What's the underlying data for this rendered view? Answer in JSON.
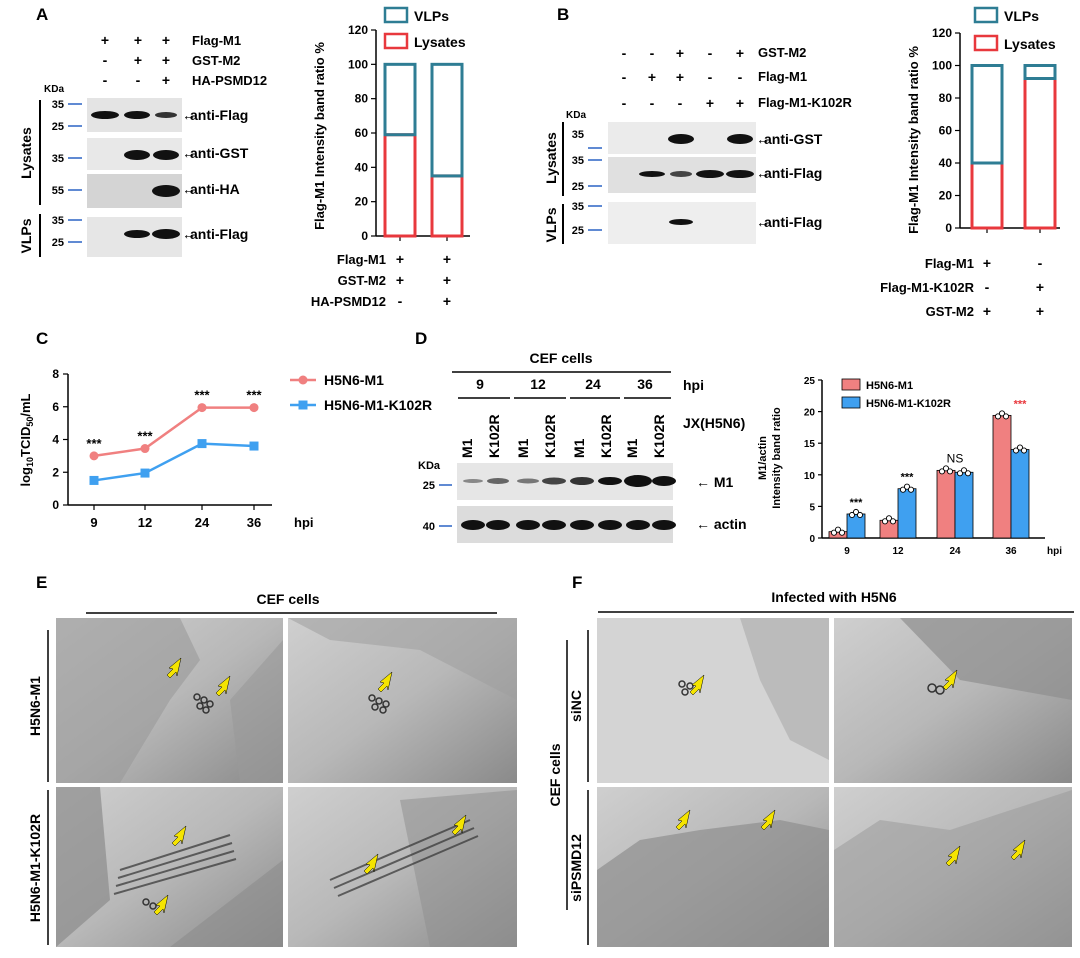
{
  "panel_labels": {
    "a": "A",
    "b": "B",
    "c": "C",
    "d": "D",
    "e": "E",
    "f": "F"
  },
  "signs": {
    "plus": "+",
    "minus": "-"
  },
  "units": {
    "kda": "KDa"
  },
  "colors": {
    "vlps": "#2e7d94",
    "lysates": "#e8383d",
    "h5n6_m1": "#f08080",
    "h5n6_m1_k102r": "#3fa0f0",
    "arrow": "#f5e400",
    "red_star": "#e8383d"
  },
  "panel_a": {
    "conditions": [
      "Flag-M1",
      "GST-M2",
      "HA-PSMD12"
    ],
    "signs_rows": [
      [
        "+",
        "+",
        "+"
      ],
      [
        "-",
        "+",
        "+"
      ],
      [
        "-",
        "-",
        "+"
      ]
    ],
    "groups": [
      "Lysates",
      "VLPs"
    ],
    "markers": [
      "35",
      "25",
      "35",
      "55",
      "35",
      "25"
    ],
    "blots": [
      "anti-Flag",
      "anti-GST",
      "anti-HA",
      "anti-Flag"
    ]
  },
  "panel_b": {
    "conditions": [
      "GST-M2",
      "Flag-M1",
      "Flag-M1-K102R"
    ],
    "signs_rows": [
      [
        "-",
        "-",
        "+",
        "-",
        "+"
      ],
      [
        "-",
        "+",
        "+",
        "-",
        "-"
      ],
      [
        "-",
        "-",
        "-",
        "+",
        "+"
      ]
    ],
    "groups": [
      "Lysates",
      "VLPs"
    ],
    "markers": [
      "35",
      "35",
      "25",
      "35",
      "25"
    ],
    "blots": [
      "anti-GST",
      "anti-Flag",
      "anti-Flag"
    ]
  },
  "panel_d_blot": {
    "header": "CEF cells",
    "times": [
      "9",
      "12",
      "24",
      "36"
    ],
    "time_unit": "hpi",
    "lanes": [
      "M1",
      "K102R",
      "M1",
      "K102R",
      "M1",
      "K102R",
      "M1",
      "K102R"
    ],
    "virus_label": "JX(H5N6)",
    "markers": [
      "25",
      "40"
    ],
    "blots": [
      "M1",
      "actin"
    ]
  },
  "panel_e": {
    "header": "CEF cells",
    "rows": [
      "H5N6-M1",
      "H5N6-M1-K102R"
    ]
  },
  "panel_f": {
    "header": "Infected with H5N6",
    "group": "CEF cells",
    "rows": [
      "siNC",
      "siPSMD12"
    ]
  },
  "chart_data": [
    {
      "id": "A",
      "type": "bar",
      "stacked": true,
      "ylabel": "Flag-M1 Intensity band ratio %",
      "ylim": [
        0,
        120
      ],
      "yticks": [
        "0",
        "20",
        "40",
        "60",
        "80",
        "100",
        "120"
      ],
      "legend": [
        "VLPs",
        "Lysates"
      ],
      "condition_labels": [
        "Flag-M1",
        "GST-M2",
        "HA-PSMD12"
      ],
      "condition_signs": [
        [
          "+",
          "+"
        ],
        [
          "+",
          "+"
        ],
        [
          "-",
          "+"
        ]
      ],
      "series": [
        {
          "name": "Lysates",
          "values": [
            59,
            35
          ]
        },
        {
          "name": "VLPs",
          "values": [
            41,
            65
          ]
        }
      ]
    },
    {
      "id": "B",
      "type": "bar",
      "stacked": true,
      "ylabel": "Flag-M1 Intensity band ratio %",
      "ylim": [
        0,
        120
      ],
      "yticks": [
        "0",
        "20",
        "40",
        "60",
        "80",
        "100",
        "120"
      ],
      "legend": [
        "VLPs",
        "Lysates"
      ],
      "condition_labels": [
        "Flag-M1",
        "Flag-M1-K102R",
        "GST-M2"
      ],
      "condition_signs": [
        [
          "+",
          "-"
        ],
        [
          "-",
          "+"
        ],
        [
          "+",
          "+"
        ]
      ],
      "series": [
        {
          "name": "Lysates",
          "values": [
            40,
            92
          ]
        },
        {
          "name": "VLPs",
          "values": [
            60,
            8
          ]
        }
      ]
    },
    {
      "id": "C",
      "type": "line",
      "ylabel": "log10TCID50/mL",
      "xlabel": "hpi",
      "ylim": [
        0,
        8
      ],
      "yticks": [
        "0",
        "2",
        "4",
        "6",
        "8"
      ],
      "categories": [
        "9",
        "12",
        "24",
        "36"
      ],
      "series": [
        {
          "name": "H5N6-M1",
          "values": [
            3.0,
            3.45,
            5.95,
            5.95
          ]
        },
        {
          "name": "H5N6-M1-K102R",
          "values": [
            1.5,
            1.95,
            3.75,
            3.6
          ]
        }
      ],
      "annotations": [
        "***",
        "***",
        "***",
        "***"
      ]
    },
    {
      "id": "D",
      "type": "bar",
      "ylabel": "M1/actin Intensity band ratio",
      "xlabel": "hpi",
      "ylim": [
        0,
        25
      ],
      "yticks": [
        "0",
        "5",
        "10",
        "15",
        "20",
        "25"
      ],
      "categories": [
        "9",
        "12",
        "24",
        "36"
      ],
      "series": [
        {
          "name": "H5N6-M1",
          "values": [
            1.0,
            2.8,
            10.7,
            19.4
          ]
        },
        {
          "name": "H5N6-M1-K102R",
          "values": [
            3.8,
            7.8,
            10.4,
            14.0
          ]
        }
      ],
      "annotations": [
        "***",
        "***",
        "NS",
        "***"
      ]
    }
  ]
}
